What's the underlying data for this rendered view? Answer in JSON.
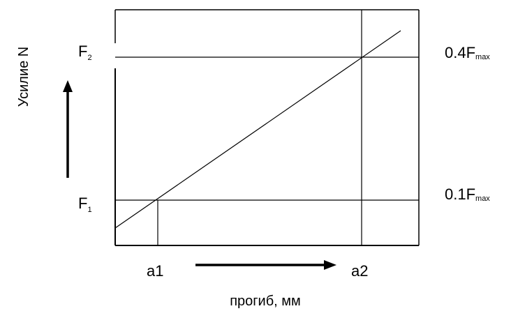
{
  "diagram": {
    "y_axis_label": "Усилие N",
    "x_axis_label": "прогиб, мм",
    "x_tick_labels": {
      "a1": "a1",
      "a2": "a2"
    },
    "force_levels": {
      "f1": {
        "letter": "F",
        "subscript": "1"
      },
      "f2": {
        "letter": "F",
        "subscript": "2"
      }
    },
    "right_labels": {
      "low": {
        "prefix": "0.1F",
        "subscript": "max"
      },
      "high": {
        "prefix": "0.4F",
        "subscript": "max"
      }
    },
    "colors": {
      "line": "#000000",
      "background": "#ffffff"
    }
  }
}
